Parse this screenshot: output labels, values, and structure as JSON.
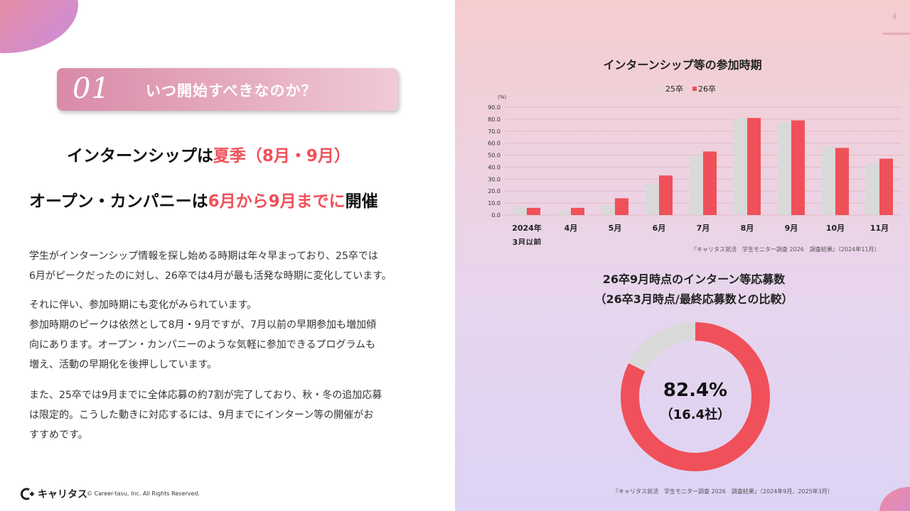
{
  "page_number": "4",
  "section": {
    "number": "01",
    "title": "いつ開始すべきなのか？"
  },
  "headline1": {
    "pre": "インターンシップは",
    "hl": "夏季（8月・9月）"
  },
  "headline2": {
    "pre": "オープン・カンパニーは",
    "hl": "6月から9月までに",
    "post": "開催"
  },
  "paragraphs": {
    "p1": [
      "学生がインターンシップ情報を探し始める時期は年々早まっており、25卒では",
      "6月がピークだったのに対し、26卒では4月が最も活発な時期に変化しています。"
    ],
    "p2": [
      "それに伴い、参加時期にも変化がみられています。",
      "参加時期のピークは依然として8月・9月ですが、7月以前の早期参加も増加傾",
      "向にあります。オープン・カンパニーのような気軽に参加できるプログラムも",
      "増え、活動の早期化を後押ししています。"
    ],
    "p3": [
      "また、25卒では9月までに全体応募の約7割が完了しており、秋・冬の追加応募",
      "は限定的。こうした動きに対応するには、9月までにインターン等の開催がお",
      "すすめです。"
    ]
  },
  "footer": {
    "logo": "キャリタス",
    "copyright": "© Career-tasu, Inc. All Rights Reserved."
  },
  "colors": {
    "accent": "#f0505a",
    "series_25": "#d9d9d9",
    "series_26": "#f0505a"
  },
  "chart_data": [
    {
      "type": "bar",
      "title": "インターンシップ等の参加時期",
      "ylabel": "(%)",
      "ylim": [
        0,
        90
      ],
      "yticks": [
        "0.0",
        "10.0",
        "20.0",
        "30.0",
        "40.0",
        "50.0",
        "60.0",
        "70.0",
        "80.0",
        "90.0"
      ],
      "categories": [
        [
          "2024年",
          "3月以前"
        ],
        [
          "4月"
        ],
        [
          "5月"
        ],
        [
          "6月"
        ],
        [
          "7月"
        ],
        [
          "8月"
        ],
        [
          "9月"
        ],
        [
          "10月"
        ],
        [
          "11月"
        ]
      ],
      "series": [
        {
          "name": "25卒",
          "values": [
            7,
            3,
            8,
            26,
            50,
            81,
            77,
            57,
            43
          ]
        },
        {
          "name": "26卒",
          "values": [
            6,
            6,
            14,
            33,
            53,
            81,
            79,
            56,
            47
          ]
        }
      ],
      "legend_position": "top",
      "source": "『キャリタス就活　学生モニター調査 2026　調査結果』（2024年11月）"
    },
    {
      "type": "pie",
      "title_lines": [
        "26卒9月時点のインターン等応募数",
        "（26卒3月時点/最終応募数との比較）"
      ],
      "center_value": "82.4%",
      "center_sub": "（16.4社）",
      "slices": [
        {
          "value": 82.4
        },
        {
          "value": 17.6
        }
      ],
      "source": "『キャリタス就活　学生モニター調査 2026　調査結果』（2024年9月、2025年3月）"
    }
  ]
}
